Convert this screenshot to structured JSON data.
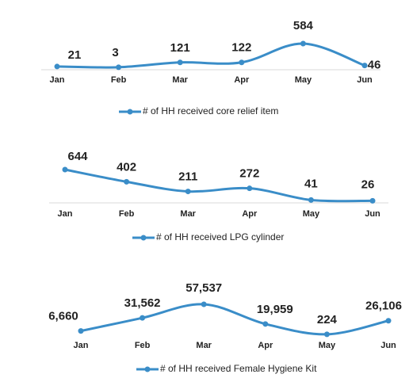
{
  "chart_data": [
    {
      "type": "line",
      "categories": [
        "Jan",
        "Feb",
        "Mar",
        "Apr",
        "May",
        "Jun"
      ],
      "series": [
        {
          "name": "# of HH received core relief item",
          "color": "#3a8dc8",
          "values": [
            21,
            3,
            121,
            122,
            584,
            46
          ]
        }
      ]
    },
    {
      "type": "line",
      "categories": [
        "Jan",
        "Feb",
        "Mar",
        "Apr",
        "May",
        "Jun"
      ],
      "series": [
        {
          "name": "# of HH received LPG cylinder",
          "color": "#3a8dc8",
          "values": [
            644,
            402,
            211,
            272,
            41,
            26
          ]
        }
      ]
    },
    {
      "type": "line",
      "categories": [
        "Jan",
        "Feb",
        "Mar",
        "Apr",
        "May",
        "Jun"
      ],
      "series": [
        {
          "name": "# of HH received Female Hygiene Kit",
          "color": "#3a8dc8",
          "values": [
            6660,
            31562,
            57537,
            19959,
            224,
            26106
          ],
          "value_labels": [
            "6,660",
            "31,562",
            "57,537",
            "19,959",
            "224",
            "26,106"
          ]
        }
      ]
    }
  ]
}
